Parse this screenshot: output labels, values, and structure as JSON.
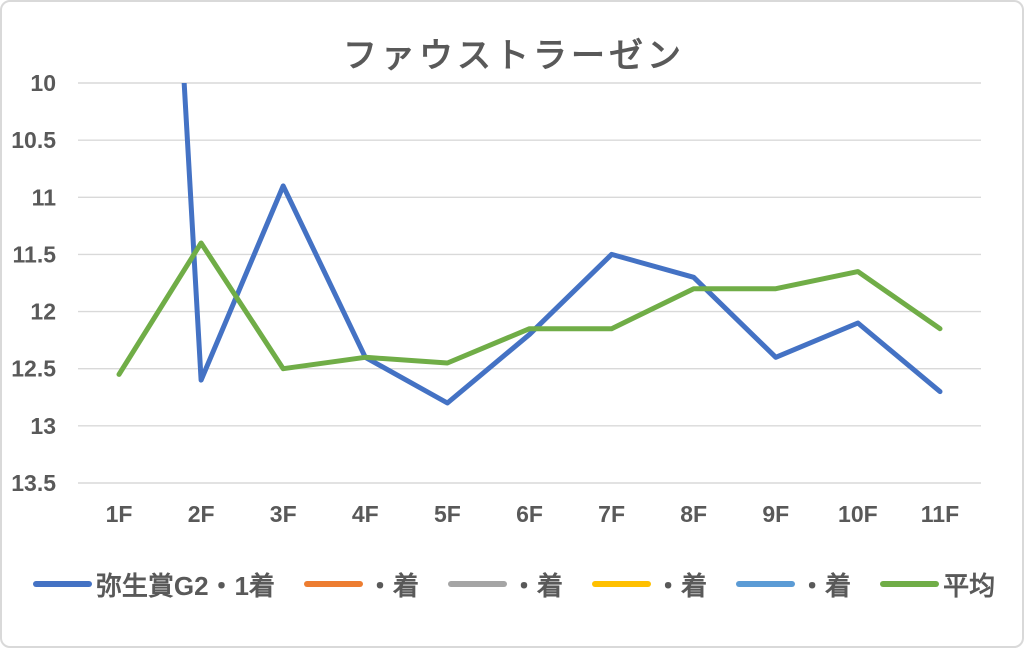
{
  "chart_data": {
    "type": "line",
    "title": "ファウストラーゼン",
    "categories": [
      "1F",
      "2F",
      "3F",
      "4F",
      "5F",
      "6F",
      "7F",
      "8F",
      "9F",
      "10F",
      "11F"
    ],
    "series": [
      {
        "name": "弥生賞G2・1着",
        "color": "#4472C4",
        "values": [
          0,
          12.6,
          10.9,
          12.4,
          12.8,
          12.2,
          11.5,
          11.7,
          12.4,
          12.1,
          12.7
        ]
      },
      {
        "name": "・着",
        "color": "#ED7D31",
        "values": []
      },
      {
        "name": "・着",
        "color": "#A5A5A5",
        "values": []
      },
      {
        "name": "・着",
        "color": "#FFC000",
        "values": []
      },
      {
        "name": "・着",
        "color": "#5B9BD5",
        "values": []
      },
      {
        "name": "平均",
        "color": "#70AD47",
        "values": [
          12.55,
          11.4,
          12.5,
          12.4,
          12.45,
          12.15,
          12.15,
          11.8,
          11.8,
          11.65,
          12.15
        ]
      }
    ],
    "y_axis": {
      "min": 10,
      "max": 13.5,
      "step": 0.5,
      "reversed": true,
      "tick_labels": [
        "10",
        "10.5",
        "11",
        "11.5",
        "12",
        "12.5",
        "13",
        "13.5"
      ]
    },
    "x_axis": {
      "label_suffix": "F"
    },
    "grid": true,
    "legend_position": "bottom",
    "colors": {
      "text": "#595959",
      "gridline": "#D9D9D9",
      "background": "#FFFFFF",
      "border": "#D9D9D9"
    },
    "notes": "first value of blue series is off-scale (plotted as 0, line clipped at axis max 10)"
  }
}
